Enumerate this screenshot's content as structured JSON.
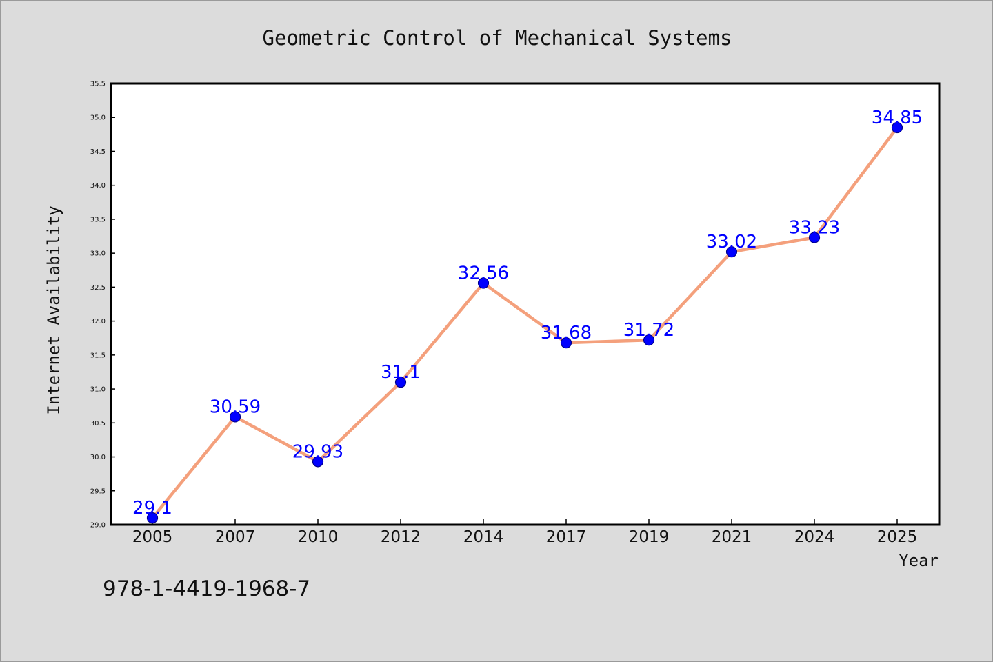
{
  "chart_data": {
    "type": "line",
    "title": "Geometric Control of Mechanical Systems",
    "xlabel": "Year",
    "ylabel": "Internet Availability",
    "categories": [
      "2005",
      "2007",
      "2010",
      "2012",
      "2014",
      "2017",
      "2019",
      "2021",
      "2024",
      "2025"
    ],
    "values": [
      29.1,
      30.59,
      29.93,
      31.1,
      32.56,
      31.68,
      31.72,
      33.02,
      33.23,
      34.85
    ],
    "data_labels": [
      "29.1",
      "30.59",
      "29.93",
      "31.1",
      "32.56",
      "31.68",
      "31.72",
      "33.02",
      "33.23",
      "34.85"
    ],
    "ylim": [
      29.0,
      35.5
    ],
    "yticks": [
      "29.0",
      "29.5",
      "30.0",
      "30.5",
      "31.0",
      "31.5",
      "32.0",
      "32.5",
      "33.0",
      "33.5",
      "34.0",
      "34.5",
      "35.0",
      "35.5"
    ],
    "grid": false,
    "legend": "none",
    "colors": {
      "line": "#f4a07c",
      "marker": "#0000ff",
      "marker_edge": "#00008b",
      "labels": "#0000ff",
      "background": "#dcdcdc",
      "plot_background": "#ffffff"
    },
    "footer_text": "978-1-4419-1968-7"
  }
}
